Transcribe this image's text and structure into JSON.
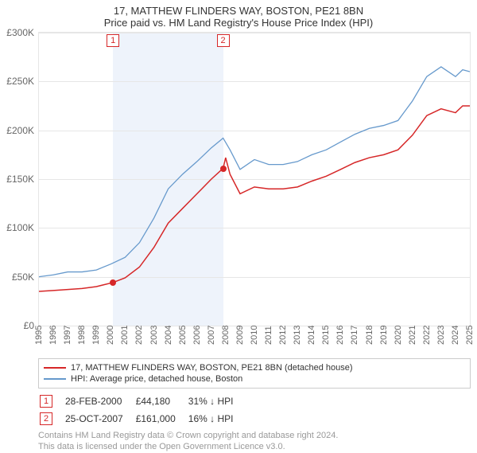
{
  "title": "17, MATTHEW FLINDERS WAY, BOSTON, PE21 8BN",
  "subtitle": "Price paid vs. HM Land Registry's House Price Index (HPI)",
  "chart": {
    "type": "line",
    "background_color": "#ffffff",
    "grid_color": "#e6e6e6",
    "shaded_range": {
      "from": 2000.16,
      "to": 2007.82,
      "color": "#eef3fb"
    },
    "x": {
      "min": 1995,
      "max": 2025,
      "ticks": [
        1995,
        1996,
        1997,
        1998,
        1999,
        2000,
        2001,
        2002,
        2003,
        2004,
        2005,
        2006,
        2007,
        2008,
        2009,
        2010,
        2011,
        2012,
        2013,
        2014,
        2015,
        2016,
        2017,
        2018,
        2019,
        2020,
        2021,
        2022,
        2023,
        2024,
        2025
      ]
    },
    "y": {
      "min": 0,
      "max": 300000,
      "ticks": [
        0,
        50000,
        100000,
        150000,
        200000,
        250000,
        300000
      ],
      "tick_labels": [
        "£0",
        "£50K",
        "£100K",
        "£150K",
        "£200K",
        "£250K",
        "£300K"
      ],
      "label_color": "#666666",
      "label_fontsize": 12
    },
    "series": [
      {
        "name": "property",
        "label": "17, MATTHEW FLINDERS WAY, BOSTON, PE21 8BN (detached house)",
        "color": "#d62728",
        "line_width": 1.5,
        "data": [
          [
            1995,
            35000
          ],
          [
            1996,
            36000
          ],
          [
            1997,
            37000
          ],
          [
            1998,
            38000
          ],
          [
            1999,
            40000
          ],
          [
            2000.16,
            44180
          ],
          [
            2001,
            49000
          ],
          [
            2002,
            60000
          ],
          [
            2003,
            80000
          ],
          [
            2004,
            105000
          ],
          [
            2005,
            120000
          ],
          [
            2006,
            135000
          ],
          [
            2007,
            150000
          ],
          [
            2007.82,
            161000
          ],
          [
            2008.0,
            172000
          ],
          [
            2008.3,
            155000
          ],
          [
            2009,
            135000
          ],
          [
            2010,
            142000
          ],
          [
            2011,
            140000
          ],
          [
            2012,
            140000
          ],
          [
            2013,
            142000
          ],
          [
            2014,
            148000
          ],
          [
            2015,
            153000
          ],
          [
            2016,
            160000
          ],
          [
            2017,
            167000
          ],
          [
            2018,
            172000
          ],
          [
            2019,
            175000
          ],
          [
            2020,
            180000
          ],
          [
            2021,
            195000
          ],
          [
            2022,
            215000
          ],
          [
            2023,
            222000
          ],
          [
            2024,
            218000
          ],
          [
            2024.5,
            225000
          ],
          [
            2025,
            225000
          ]
        ]
      },
      {
        "name": "hpi",
        "label": "HPI: Average price, detached house, Boston",
        "color": "#6699cc",
        "line_width": 1.3,
        "data": [
          [
            1995,
            50000
          ],
          [
            1996,
            52000
          ],
          [
            1997,
            55000
          ],
          [
            1998,
            55000
          ],
          [
            1999,
            57000
          ],
          [
            2000,
            63000
          ],
          [
            2001,
            70000
          ],
          [
            2002,
            85000
          ],
          [
            2003,
            110000
          ],
          [
            2004,
            140000
          ],
          [
            2005,
            155000
          ],
          [
            2006,
            168000
          ],
          [
            2007,
            182000
          ],
          [
            2007.82,
            192000
          ],
          [
            2008.3,
            180000
          ],
          [
            2009,
            160000
          ],
          [
            2010,
            170000
          ],
          [
            2011,
            165000
          ],
          [
            2012,
            165000
          ],
          [
            2013,
            168000
          ],
          [
            2014,
            175000
          ],
          [
            2015,
            180000
          ],
          [
            2016,
            188000
          ],
          [
            2017,
            196000
          ],
          [
            2018,
            202000
          ],
          [
            2019,
            205000
          ],
          [
            2020,
            210000
          ],
          [
            2021,
            230000
          ],
          [
            2022,
            255000
          ],
          [
            2023,
            265000
          ],
          [
            2024,
            255000
          ],
          [
            2024.5,
            262000
          ],
          [
            2025,
            260000
          ]
        ]
      }
    ],
    "markers": [
      {
        "id": "1",
        "x": 2000.16,
        "y": 44180,
        "box_color": "#d62728"
      },
      {
        "id": "2",
        "x": 2007.82,
        "y": 161000,
        "box_color": "#d62728"
      }
    ]
  },
  "legend": {
    "border_color": "#cccccc",
    "items": [
      {
        "color": "#d62728",
        "label": "17, MATTHEW FLINDERS WAY, BOSTON, PE21 8BN (detached house)"
      },
      {
        "color": "#6699cc",
        "label": "HPI: Average price, detached house, Boston"
      }
    ]
  },
  "table": {
    "rows": [
      {
        "id": "1",
        "box_color": "#d62728",
        "date": "28-FEB-2000",
        "price": "£44,180",
        "delta": "31% ↓ HPI"
      },
      {
        "id": "2",
        "box_color": "#d62728",
        "date": "25-OCT-2007",
        "price": "£161,000",
        "delta": "16% ↓ HPI"
      }
    ]
  },
  "attribution": {
    "line1": "Contains HM Land Registry data © Crown copyright and database right 2024.",
    "line2": "This data is licensed under the Open Government Licence v3.0."
  }
}
